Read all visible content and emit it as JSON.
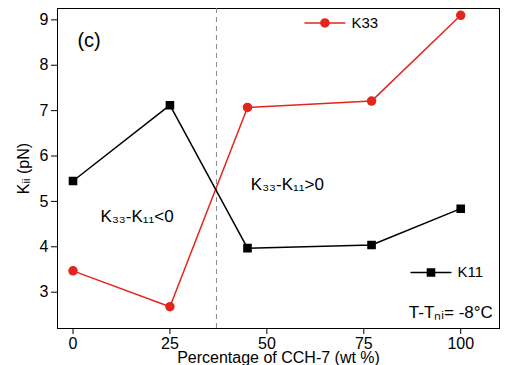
{
  "chart_data": {
    "type": "line",
    "x_label": "Percentage of CCH-7 (wt %)",
    "y_label": "Kᵢᵢ (pN)",
    "x": [
      0,
      25,
      45,
      77,
      100
    ],
    "series": [
      {
        "name": "K33",
        "color": "#e3261d",
        "marker": "circle",
        "values": [
          3.47,
          2.68,
          7.07,
          7.21,
          9.1
        ]
      },
      {
        "name": "K11",
        "color": "#000000",
        "marker": "square",
        "values": [
          5.45,
          7.12,
          3.97,
          4.04,
          4.84
        ]
      }
    ],
    "xlim": [
      -4,
      110
    ],
    "ylim": [
      2.2,
      9.25
    ],
    "xticks": [
      0,
      25,
      50,
      75,
      100
    ],
    "yticks": [
      3,
      4,
      5,
      6,
      7,
      8,
      9
    ],
    "grid": false,
    "boundary_x": 37,
    "annotations": [
      "(c)",
      "K₃₃-K₁₁<0",
      "K₃₃-K₁₁>0",
      "T-Tₙᵢ= -8°C"
    ]
  }
}
